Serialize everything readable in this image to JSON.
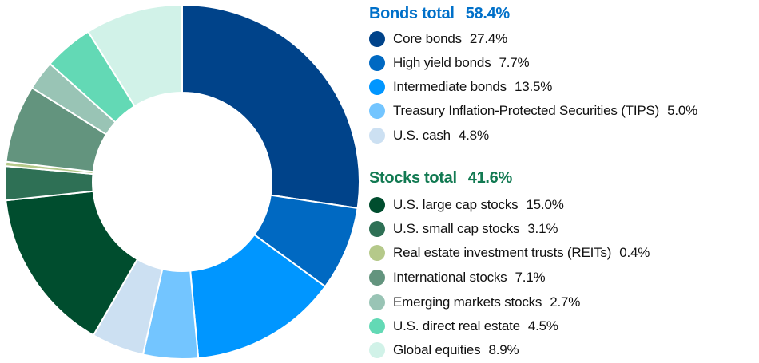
{
  "chart_data": {
    "type": "pie",
    "donut": true,
    "groups": [
      {
        "name": "Bonds total",
        "total": "58.4%",
        "color": "#0070c9",
        "items": [
          {
            "label": "Core bonds",
            "value": 27.4,
            "display": "27.4%",
            "color": "#00438a"
          },
          {
            "label": "High yield bonds",
            "value": 7.7,
            "display": "7.7%",
            "color": "#0069c2"
          },
          {
            "label": "Intermediate bonds",
            "value": 13.5,
            "display": "13.5%",
            "color": "#0096ff"
          },
          {
            "label": "Treasury Inflation-Protected Securities (TIPS)",
            "value": 5.0,
            "display": "5.0%",
            "color": "#73c5ff"
          },
          {
            "label": "U.S. cash",
            "value": 4.8,
            "display": "4.8%",
            "color": "#cce0f2"
          }
        ]
      },
      {
        "name": "Stocks total",
        "total": "41.6%",
        "color": "#127a52",
        "items": [
          {
            "label": "U.S. large cap stocks",
            "value": 15.0,
            "display": "15.0%",
            "color": "#004d2e"
          },
          {
            "label": "U.S. small cap stocks",
            "value": 3.1,
            "display": "3.1%",
            "color": "#2e7055"
          },
          {
            "label": "Real estate investment trusts (REITs)",
            "value": 0.4,
            "display": "0.4%",
            "color": "#b5c98a"
          },
          {
            "label": "International stocks",
            "value": 7.1,
            "display": "7.1%",
            "color": "#63947e"
          },
          {
            "label": "Emerging markets stocks",
            "value": 2.7,
            "display": "2.7%",
            "color": "#99c4b5"
          },
          {
            "label": "U.S. direct real estate",
            "value": 4.5,
            "display": "4.5%",
            "color": "#63d9b5"
          },
          {
            "label": "Global equities",
            "value": 8.9,
            "display": "8.9%",
            "color": "#d1f2e8"
          }
        ]
      }
    ],
    "legend": "right"
  }
}
